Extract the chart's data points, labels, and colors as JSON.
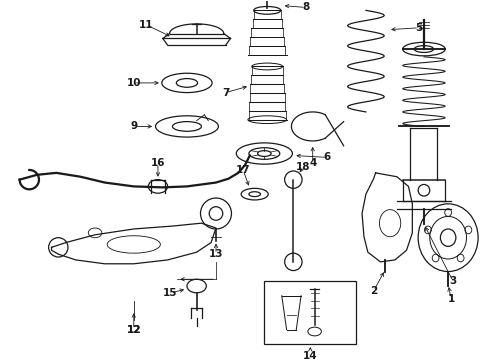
{
  "background_color": "#ffffff",
  "line_color": "#1a1a1a",
  "fig_width": 4.9,
  "fig_height": 3.6,
  "dpi": 100,
  "label_fontsize": 7.5,
  "arrow_lw": 0.6,
  "part_lw": 0.9
}
